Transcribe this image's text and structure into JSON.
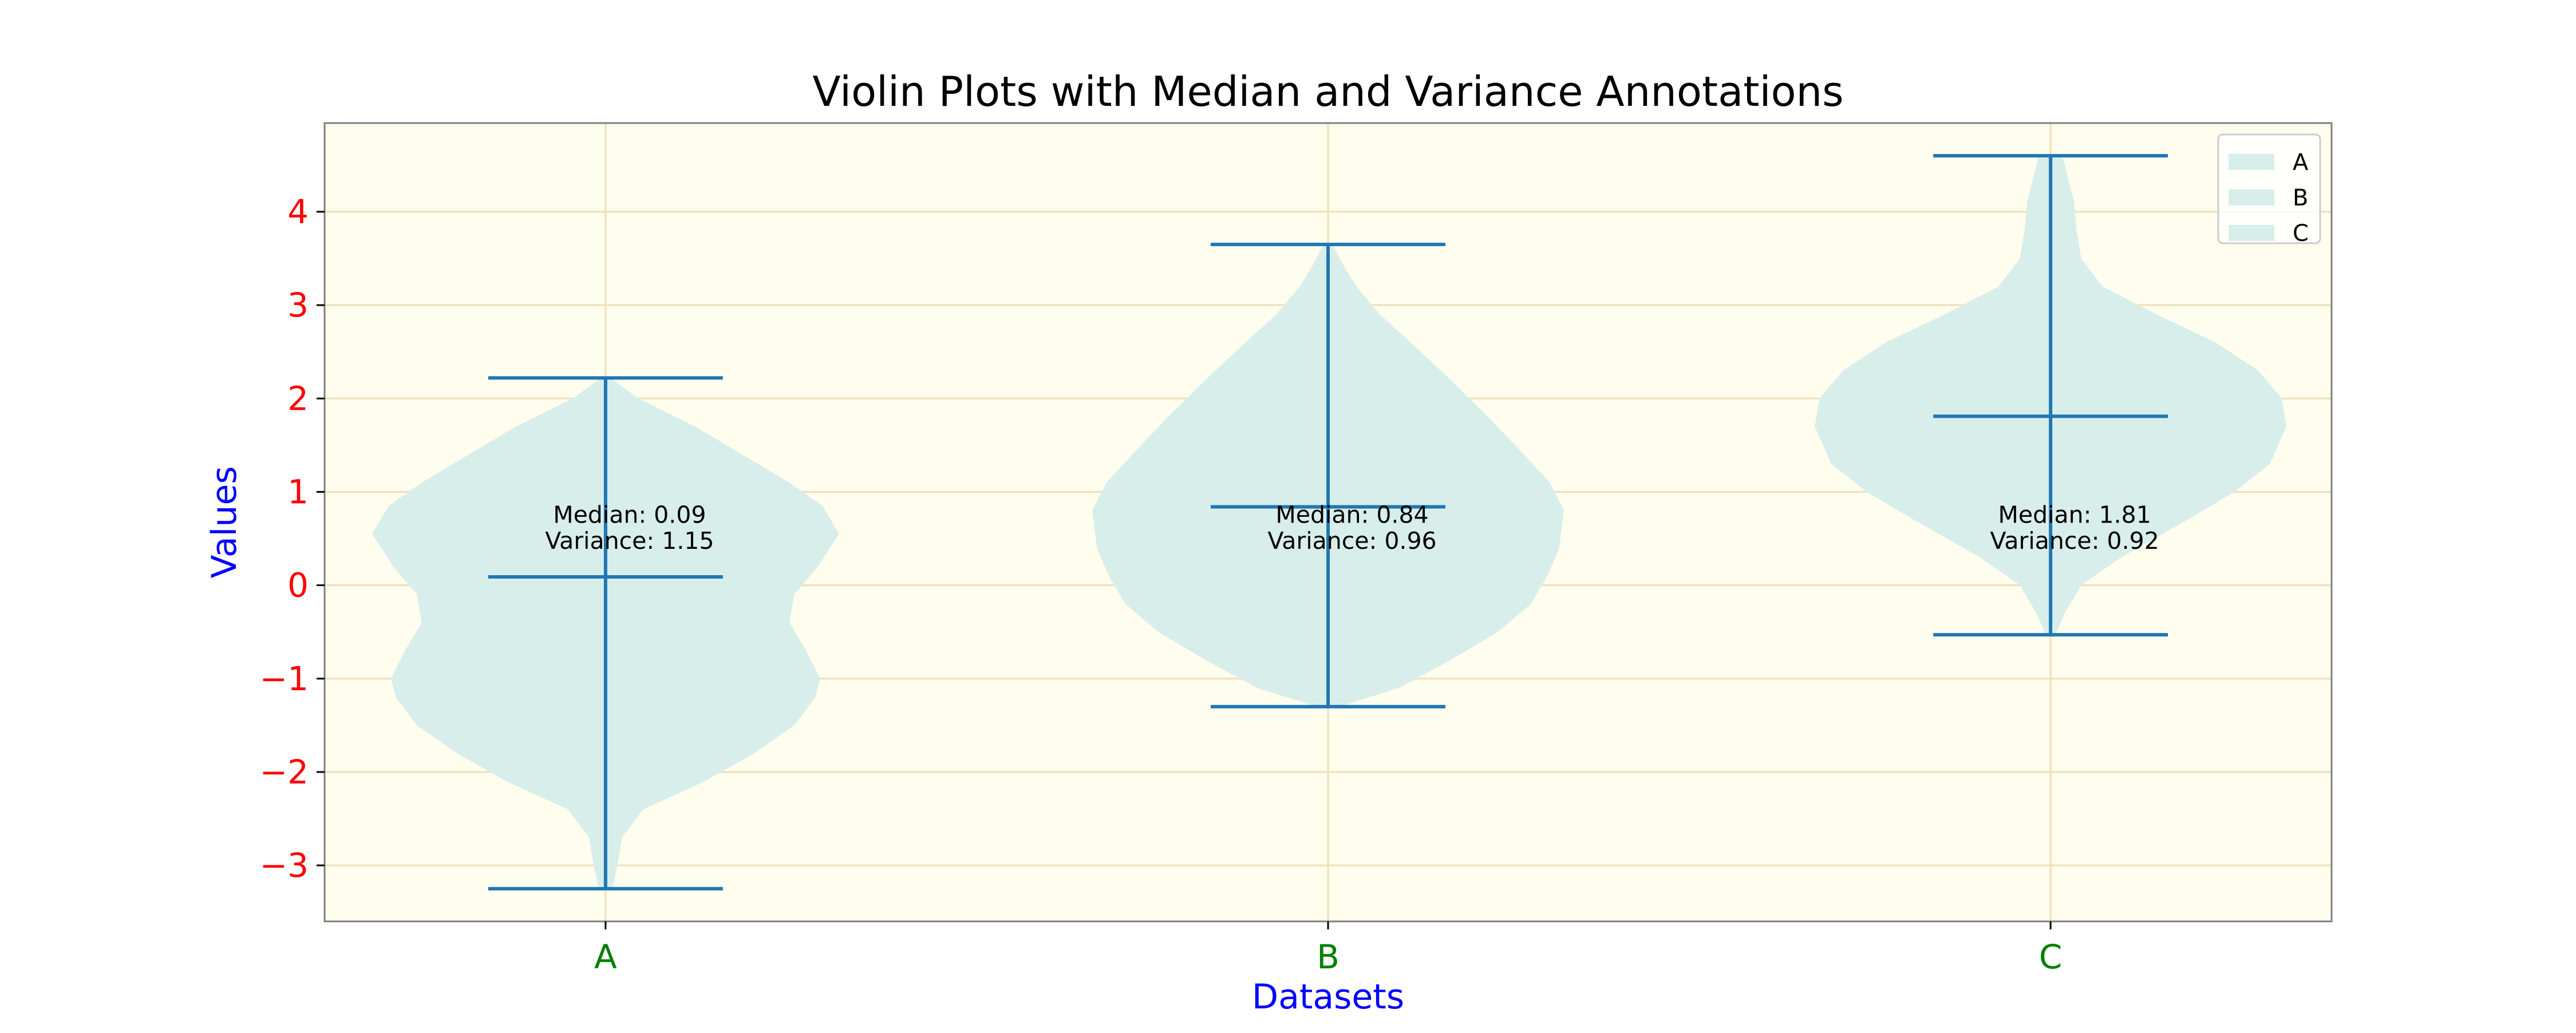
{
  "chart_data": {
    "type": "violin",
    "title": "Violin Plots with Median and Variance Annotations",
    "xlabel": "Datasets",
    "ylabel": "Values",
    "categories": [
      "A",
      "B",
      "C"
    ],
    "ylim": [
      -3.6,
      4.95
    ],
    "yticks": [
      -3,
      -2,
      -1,
      0,
      1,
      2,
      3,
      4
    ],
    "grid": true,
    "legend": {
      "position": "top-right",
      "entries": [
        "A",
        "B",
        "C"
      ]
    },
    "colors": {
      "plot_background": "#fffeee",
      "violin_fill": "#d8eeea",
      "stat_lines": "#1f77b4",
      "grid": "#f0deb8",
      "ytick_labels": "#ff0000",
      "xtick_labels": "#008000",
      "axis_labels": "#0000ff",
      "title": "#000000"
    },
    "series": [
      {
        "category": "A",
        "min": -3.25,
        "max": 2.22,
        "median": 0.09,
        "variance": 1.15,
        "median_label": "Median: 0.09",
        "variance_label": "Variance: 1.15",
        "density": [
          [
            -3.25,
            0.03
          ],
          [
            -3.0,
            0.05
          ],
          [
            -2.7,
            0.07
          ],
          [
            -2.4,
            0.16
          ],
          [
            -2.1,
            0.42
          ],
          [
            -1.8,
            0.63
          ],
          [
            -1.5,
            0.8
          ],
          [
            -1.2,
            0.89
          ],
          [
            -1.0,
            0.91
          ],
          [
            -0.7,
            0.85
          ],
          [
            -0.4,
            0.78
          ],
          [
            -0.1,
            0.8
          ],
          [
            0.2,
            0.9
          ],
          [
            0.55,
            0.99
          ],
          [
            0.85,
            0.92
          ],
          [
            1.1,
            0.78
          ],
          [
            1.4,
            0.58
          ],
          [
            1.7,
            0.38
          ],
          [
            2.0,
            0.14
          ],
          [
            2.22,
            0.02
          ]
        ]
      },
      {
        "category": "B",
        "min": -1.3,
        "max": 3.65,
        "median": 0.84,
        "variance": 0.96,
        "median_label": "Median: 0.84",
        "variance_label": "Variance: 0.96",
        "density": [
          [
            -1.3,
            0.05
          ],
          [
            -1.1,
            0.3
          ],
          [
            -0.8,
            0.52
          ],
          [
            -0.5,
            0.72
          ],
          [
            -0.2,
            0.86
          ],
          [
            0.1,
            0.93
          ],
          [
            0.4,
            0.98
          ],
          [
            0.8,
            1.0
          ],
          [
            1.1,
            0.94
          ],
          [
            1.4,
            0.83
          ],
          [
            1.8,
            0.68
          ],
          [
            2.2,
            0.52
          ],
          [
            2.6,
            0.35
          ],
          [
            2.9,
            0.22
          ],
          [
            3.2,
            0.12
          ],
          [
            3.45,
            0.06
          ],
          [
            3.65,
            0.02
          ]
        ]
      },
      {
        "category": "C",
        "min": -0.53,
        "max": 4.6,
        "median": 1.81,
        "variance": 0.92,
        "median_label": "Median: 1.81",
        "variance_label": "Variance: 0.92",
        "density": [
          [
            -0.53,
            0.02
          ],
          [
            -0.3,
            0.06
          ],
          [
            0.0,
            0.13
          ],
          [
            0.3,
            0.3
          ],
          [
            0.7,
            0.58
          ],
          [
            1.0,
            0.78
          ],
          [
            1.3,
            0.93
          ],
          [
            1.7,
            1.0
          ],
          [
            2.0,
            0.98
          ],
          [
            2.3,
            0.88
          ],
          [
            2.6,
            0.7
          ],
          [
            2.9,
            0.45
          ],
          [
            3.2,
            0.22
          ],
          [
            3.5,
            0.13
          ],
          [
            3.8,
            0.11
          ],
          [
            4.1,
            0.1
          ],
          [
            4.4,
            0.07
          ],
          [
            4.6,
            0.05
          ]
        ]
      }
    ]
  }
}
